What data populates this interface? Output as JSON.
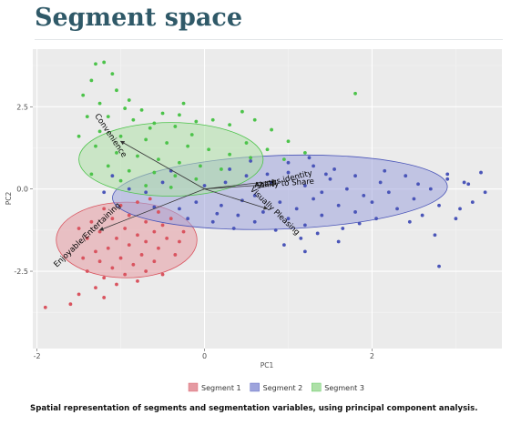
{
  "page": {
    "title": "Segment space",
    "caption": "Spatial representation of segments and segmentation variables, using principal component analysis."
  },
  "chart_data": {
    "type": "scatter",
    "xlabel": "PC1",
    "ylabel": "PC2",
    "xlim": [
      -2.05,
      3.55
    ],
    "ylim": [
      -4.85,
      4.25
    ],
    "x_ticks": [
      {
        "v": -2,
        "label": "-2"
      },
      {
        "v": 0,
        "label": "0"
      },
      {
        "v": 2,
        "label": "2"
      }
    ],
    "y_ticks": [
      {
        "v": 2.5,
        "label": "2.5"
      },
      {
        "v": 0,
        "label": "0.0"
      },
      {
        "v": -2.5,
        "label": "-2.5"
      }
    ],
    "grid": true,
    "legend_position": "bottom",
    "series": [
      {
        "name": "Segment 1",
        "color": "#d9545f",
        "fill": "#e59aa2",
        "ellipse": {
          "cx": -0.93,
          "cy": -1.55,
          "rx": 0.84,
          "ry": 1.15,
          "angle": 0
        },
        "points": [
          [
            -0.65,
            -0.3
          ],
          [
            -0.8,
            -0.4
          ],
          [
            -1.0,
            -0.5
          ],
          [
            -1.2,
            -0.6
          ],
          [
            -0.55,
            -0.7
          ],
          [
            -0.9,
            -0.8
          ],
          [
            -1.1,
            -0.9
          ],
          [
            -1.35,
            -1.0
          ],
          [
            -0.7,
            -1.0
          ],
          [
            -0.5,
            -1.1
          ],
          [
            -0.95,
            -1.2
          ],
          [
            -1.25,
            -1.3
          ],
          [
            -0.6,
            -1.3
          ],
          [
            -0.8,
            -1.4
          ],
          [
            -1.05,
            -1.5
          ],
          [
            -1.4,
            -1.5
          ],
          [
            -0.45,
            -1.5
          ],
          [
            -0.7,
            -1.6
          ],
          [
            -0.9,
            -1.7
          ],
          [
            -1.15,
            -1.8
          ],
          [
            -1.3,
            -1.9
          ],
          [
            -0.55,
            -1.8
          ],
          [
            -0.75,
            -2.0
          ],
          [
            -1.0,
            -2.1
          ],
          [
            -1.25,
            -2.2
          ],
          [
            -0.6,
            -2.2
          ],
          [
            -0.85,
            -2.3
          ],
          [
            -1.1,
            -2.4
          ],
          [
            -1.4,
            -2.5
          ],
          [
            -0.7,
            -2.5
          ],
          [
            -0.95,
            -2.6
          ],
          [
            -1.2,
            -2.7
          ],
          [
            -0.5,
            -2.6
          ],
          [
            -0.8,
            -2.8
          ],
          [
            -1.05,
            -2.9
          ],
          [
            -1.3,
            -3.0
          ],
          [
            -1.5,
            -3.2
          ],
          [
            -1.2,
            -3.3
          ],
          [
            -1.6,
            -3.5
          ],
          [
            -1.9,
            -3.6
          ],
          [
            -0.3,
            -1.6
          ],
          [
            -0.35,
            -2.0
          ],
          [
            -0.4,
            -0.9
          ],
          [
            -1.5,
            -1.2
          ],
          [
            -1.45,
            -2.1
          ],
          [
            -0.25,
            -1.3
          ]
        ]
      },
      {
        "name": "Segment 2",
        "color": "#4a55b8",
        "fill": "#9ea4dc",
        "ellipse": {
          "cx": 0.9,
          "cy": -0.1,
          "rx": 2.0,
          "ry": 1.12,
          "angle": -2
        },
        "points": [
          [
            0.3,
            0.6
          ],
          [
            0.5,
            0.4
          ],
          [
            0.8,
            0.2
          ],
          [
            1.0,
            0.5
          ],
          [
            1.2,
            0.1
          ],
          [
            1.4,
            -0.1
          ],
          [
            0.6,
            -0.2
          ],
          [
            0.9,
            -0.4
          ],
          [
            1.1,
            -0.6
          ],
          [
            1.3,
            -0.3
          ],
          [
            1.5,
            0.3
          ],
          [
            1.7,
            0.0
          ],
          [
            1.9,
            -0.2
          ],
          [
            2.1,
            0.2
          ],
          [
            0.2,
            -0.5
          ],
          [
            0.4,
            -0.8
          ],
          [
            0.7,
            -0.7
          ],
          [
            1.0,
            -0.9
          ],
          [
            1.2,
            -1.1
          ],
          [
            1.4,
            -0.8
          ],
          [
            1.6,
            -0.5
          ],
          [
            1.8,
            -0.7
          ],
          [
            2.0,
            -0.4
          ],
          [
            2.2,
            -0.1
          ],
          [
            2.3,
            -0.6
          ],
          [
            2.4,
            0.4
          ],
          [
            2.5,
            -0.3
          ],
          [
            2.6,
            -0.8
          ],
          [
            2.7,
            0.0
          ],
          [
            2.8,
            -0.5
          ],
          [
            2.9,
            0.3
          ],
          [
            3.0,
            -0.9
          ],
          [
            3.1,
            0.2
          ],
          [
            3.2,
            -0.4
          ],
          [
            3.3,
            0.5
          ],
          [
            3.35,
            -0.1
          ],
          [
            2.45,
            -1.0
          ],
          [
            2.75,
            -1.4
          ],
          [
            2.8,
            -2.35
          ],
          [
            1.85,
            -1.05
          ],
          [
            -0.1,
            -0.4
          ],
          [
            -0.3,
            -0.6
          ],
          [
            0.0,
            0.1
          ],
          [
            0.1,
            -1.0
          ],
          [
            0.35,
            -1.2
          ],
          [
            0.6,
            -1.0
          ],
          [
            0.85,
            -1.25
          ],
          [
            1.15,
            -1.5
          ],
          [
            1.0,
            0.8
          ],
          [
            1.3,
            0.7
          ],
          [
            1.55,
            0.6
          ],
          [
            1.8,
            0.4
          ],
          [
            -0.5,
            0.2
          ],
          [
            -0.7,
            -0.1
          ],
          [
            0.25,
            0.2
          ],
          [
            0.55,
            0.85
          ],
          [
            1.65,
            -1.2
          ],
          [
            2.05,
            -0.9
          ],
          [
            2.15,
            0.55
          ],
          [
            0.95,
            -1.7
          ],
          [
            1.25,
            0.95
          ],
          [
            1.45,
            0.45
          ],
          [
            1.6,
            -1.6
          ],
          [
            1.2,
            -1.9
          ],
          [
            1.35,
            -1.35
          ],
          [
            0.75,
            0.45
          ],
          [
            0.45,
            -0.35
          ],
          [
            0.15,
            -0.75
          ],
          [
            -0.2,
            -0.9
          ],
          [
            -0.6,
            -0.55
          ],
          [
            -0.9,
            0.0
          ],
          [
            -1.1,
            0.4
          ],
          [
            -1.2,
            -0.1
          ],
          [
            -0.4,
            0.55
          ],
          [
            2.55,
            0.15
          ],
          [
            3.05,
            -0.6
          ],
          [
            2.9,
            0.45
          ],
          [
            3.15,
            0.15
          ]
        ]
      },
      {
        "name": "Segment 3",
        "color": "#4cc34a",
        "fill": "#aee0a8",
        "ellipse": {
          "cx": -0.4,
          "cy": 0.9,
          "rx": 1.1,
          "ry": 1.12,
          "angle": 0
        },
        "points": [
          [
            -1.3,
            3.8
          ],
          [
            -1.2,
            3.85
          ],
          [
            -1.1,
            3.5
          ],
          [
            -1.35,
            3.3
          ],
          [
            -1.05,
            3.0
          ],
          [
            -1.45,
            2.85
          ],
          [
            -1.25,
            2.6
          ],
          [
            -0.95,
            2.45
          ],
          [
            -0.75,
            2.4
          ],
          [
            -0.5,
            2.3
          ],
          [
            -0.3,
            2.25
          ],
          [
            -1.15,
            2.2
          ],
          [
            -0.85,
            2.1
          ],
          [
            -0.6,
            2.0
          ],
          [
            -0.35,
            1.9
          ],
          [
            -0.1,
            2.05
          ],
          [
            0.1,
            2.1
          ],
          [
            0.3,
            1.95
          ],
          [
            0.6,
            2.1
          ],
          [
            0.8,
            1.8
          ],
          [
            1.0,
            1.45
          ],
          [
            1.2,
            1.1
          ],
          [
            -1.25,
            1.75
          ],
          [
            -1.0,
            1.6
          ],
          [
            -0.7,
            1.5
          ],
          [
            -0.45,
            1.4
          ],
          [
            -0.2,
            1.3
          ],
          [
            0.05,
            1.2
          ],
          [
            0.3,
            1.05
          ],
          [
            0.55,
            0.95
          ],
          [
            -1.3,
            1.3
          ],
          [
            -1.05,
            1.1
          ],
          [
            -0.8,
            1.0
          ],
          [
            -0.55,
            0.9
          ],
          [
            -0.3,
            0.8
          ],
          [
            -0.05,
            0.7
          ],
          [
            0.2,
            0.6
          ],
          [
            -1.15,
            0.7
          ],
          [
            -0.9,
            0.55
          ],
          [
            -0.6,
            0.5
          ],
          [
            -0.35,
            0.4
          ],
          [
            -0.1,
            0.3
          ],
          [
            -1.35,
            0.45
          ],
          [
            -1.0,
            0.25
          ],
          [
            -0.7,
            0.1
          ],
          [
            -0.4,
            0.05
          ],
          [
            1.8,
            2.9
          ],
          [
            0.5,
            1.4
          ],
          [
            0.75,
            1.2
          ],
          [
            -0.15,
            1.65
          ],
          [
            -0.65,
            1.85
          ],
          [
            -0.9,
            2.7
          ],
          [
            0.45,
            2.35
          ],
          [
            0.95,
            0.9
          ],
          [
            -0.25,
            2.6
          ],
          [
            -1.4,
            2.2
          ],
          [
            -1.5,
            1.6
          ]
        ]
      }
    ],
    "vectors": [
      {
        "label": "Convenience",
        "x": -1.0,
        "y": 1.45,
        "label_angle": 56
      },
      {
        "label": "Status identity",
        "x": 0.85,
        "y": 0.25,
        "label_angle": -14
      },
      {
        "label": "Ability to Share",
        "x": 0.85,
        "y": 0.15,
        "label_angle": -4
      },
      {
        "label": "Visually Pleasing",
        "x": 0.75,
        "y": -0.6,
        "label_angle": 44
      },
      {
        "label": "Enjoyable/Entertaining",
        "x": -1.25,
        "y": -1.25,
        "label_angle": -44
      }
    ]
  }
}
